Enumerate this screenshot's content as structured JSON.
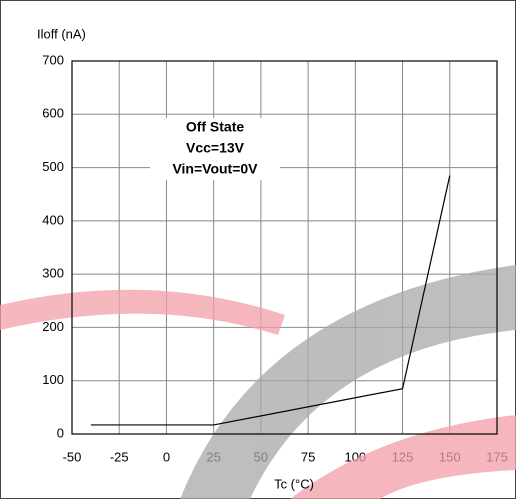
{
  "chart_data": {
    "type": "line",
    "y_label": "Iloff (nA)",
    "x_label": "Tc (°C)",
    "annotation": [
      "Off State",
      "Vcc=13V",
      "Vin=Vout=0V"
    ],
    "x": [
      -40,
      25,
      125,
      150
    ],
    "series": [
      {
        "name": "Iloff",
        "color": "#000000",
        "values": [
          17,
          17,
          85,
          485
        ]
      }
    ],
    "xlim": [
      -50,
      175
    ],
    "xticks": [
      -50,
      -25,
      0,
      25,
      50,
      75,
      100,
      125,
      150,
      175
    ],
    "ylim": [
      0,
      700
    ],
    "yticks": [
      0,
      100,
      200,
      300,
      400,
      500,
      600,
      700
    ],
    "grid": true
  }
}
